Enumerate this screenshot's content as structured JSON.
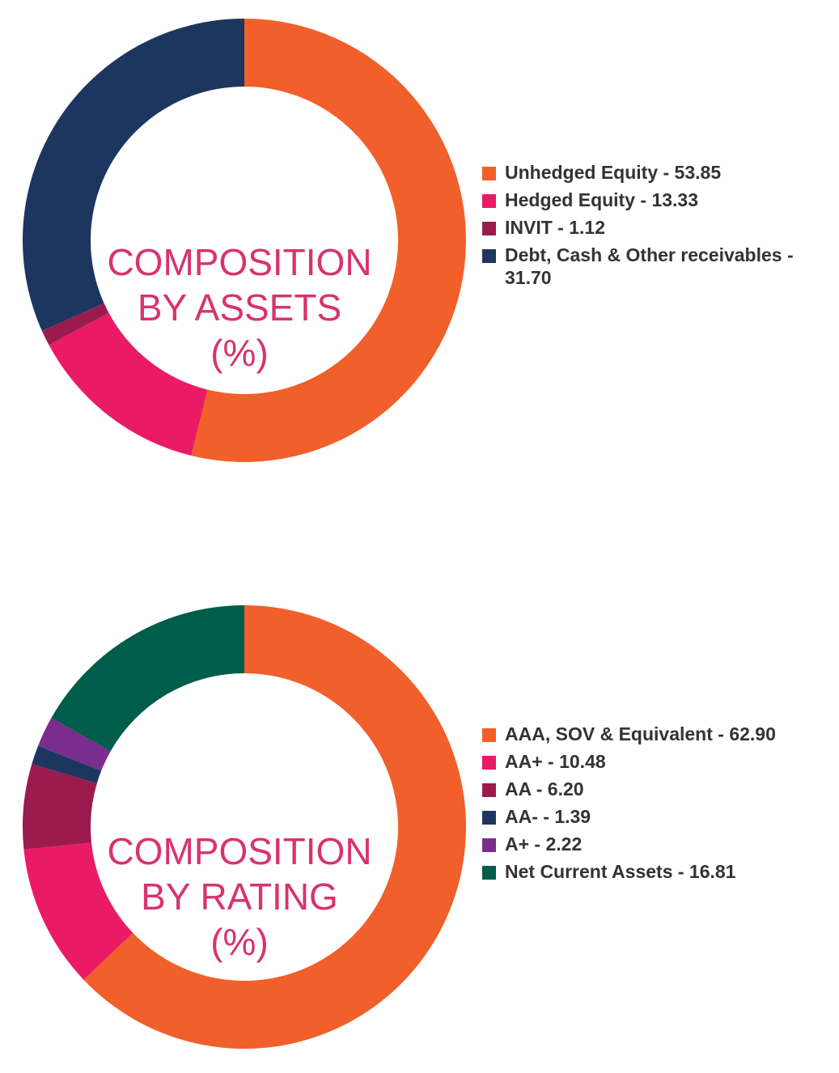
{
  "chart_data": [
    {
      "type": "donut",
      "center_label": [
        "COMPOSITION",
        "BY ASSETS",
        "(%)"
      ],
      "categories": [
        "Unhedged Equity",
        "Hedged Equity",
        "INVIT",
        "Debt, Cash & Other receivables"
      ],
      "values": [
        53.85,
        13.33,
        1.12,
        31.7
      ],
      "colors": [
        "#f15f2a",
        "#ea1a66",
        "#9b1b4f",
        "#1d3660"
      ],
      "legend_labels": [
        "Unhedged Equity - 53.85",
        "Hedged Equity - 13.33",
        "INVIT - 1.12",
        "Debt, Cash & Other receivables - 31.70"
      ],
      "legend_position": "right"
    },
    {
      "type": "donut",
      "center_label": [
        "COMPOSITION",
        "BY RATING",
        "(%)"
      ],
      "categories": [
        "AAA, SOV & Equivalent",
        "AA+",
        "AA",
        "AA-",
        "A+",
        "Net Current Assets"
      ],
      "values": [
        62.9,
        10.48,
        6.2,
        1.39,
        2.22,
        16.81
      ],
      "colors": [
        "#f15f2a",
        "#ea1a66",
        "#9b1b4f",
        "#1d3660",
        "#7a2c8f",
        "#005c4b"
      ],
      "legend_labels": [
        "AAA, SOV & Equivalent - 62.90",
        "AA+ - 10.48",
        "AA - 6.20",
        "AA- - 1.39",
        "A+ - 2.22",
        "Net Current Assets - 16.81"
      ],
      "legend_position": "right"
    }
  ]
}
